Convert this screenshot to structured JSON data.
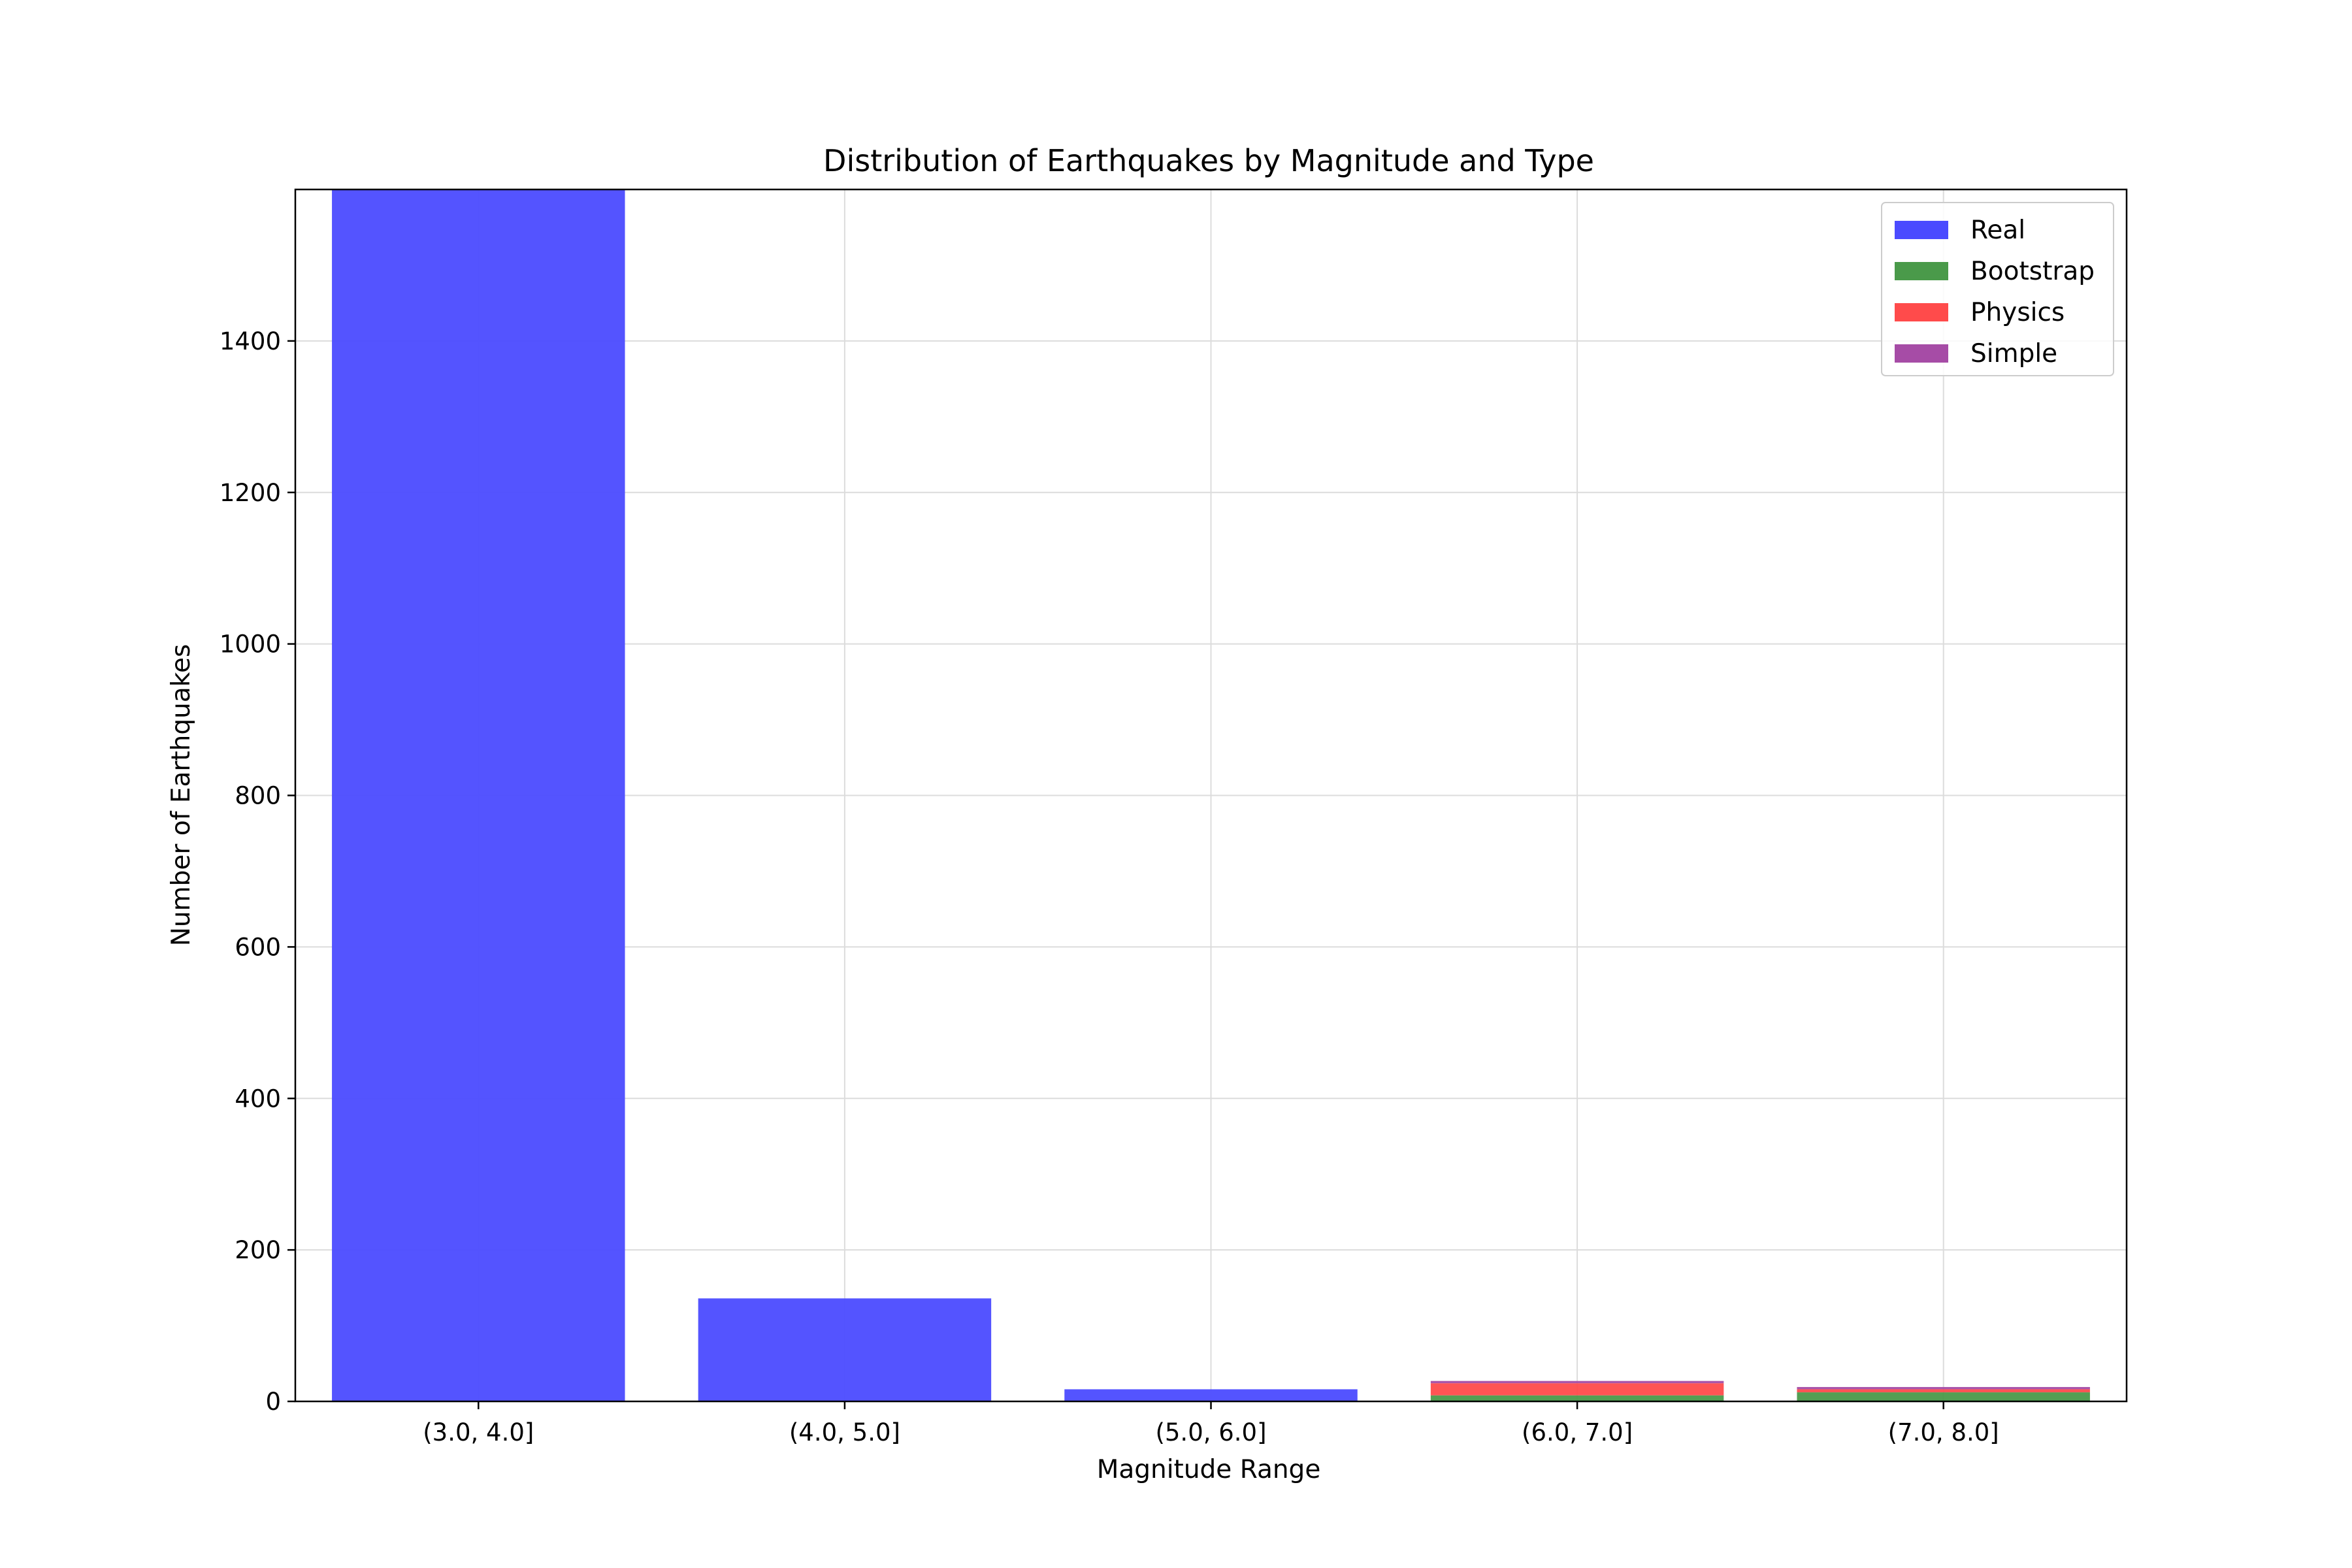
{
  "chart_data": {
    "type": "bar",
    "stacked": true,
    "title": "Distribution of Earthquakes by Magnitude and Type",
    "xlabel": "Magnitude Range",
    "ylabel": "Number of Earthquakes",
    "categories": [
      "(3.0, 4.0]",
      "(4.0, 5.0]",
      "(5.0, 6.0]",
      "(6.0, 7.0]",
      "(7.0, 8.0]"
    ],
    "series": [
      {
        "name": "Real",
        "color": "#4b4bff",
        "values": [
          1600,
          136,
          16,
          0,
          0
        ]
      },
      {
        "name": "Bootstrap",
        "color": "#4a9a4a",
        "values": [
          0,
          0,
          0,
          8,
          12
        ]
      },
      {
        "name": "Physics",
        "color": "#ff4b4b",
        "values": [
          0,
          0,
          0,
          16,
          4
        ]
      },
      {
        "name": "Simple",
        "color": "#a64ca6",
        "values": [
          0,
          0,
          0,
          3,
          3
        ]
      }
    ],
    "ylim": [
      0,
      1600
    ],
    "yticks": [
      "0",
      "200",
      "400",
      "600",
      "800",
      "1000",
      "1200",
      "1400"
    ],
    "grid": true,
    "legend_position": "top-right"
  }
}
